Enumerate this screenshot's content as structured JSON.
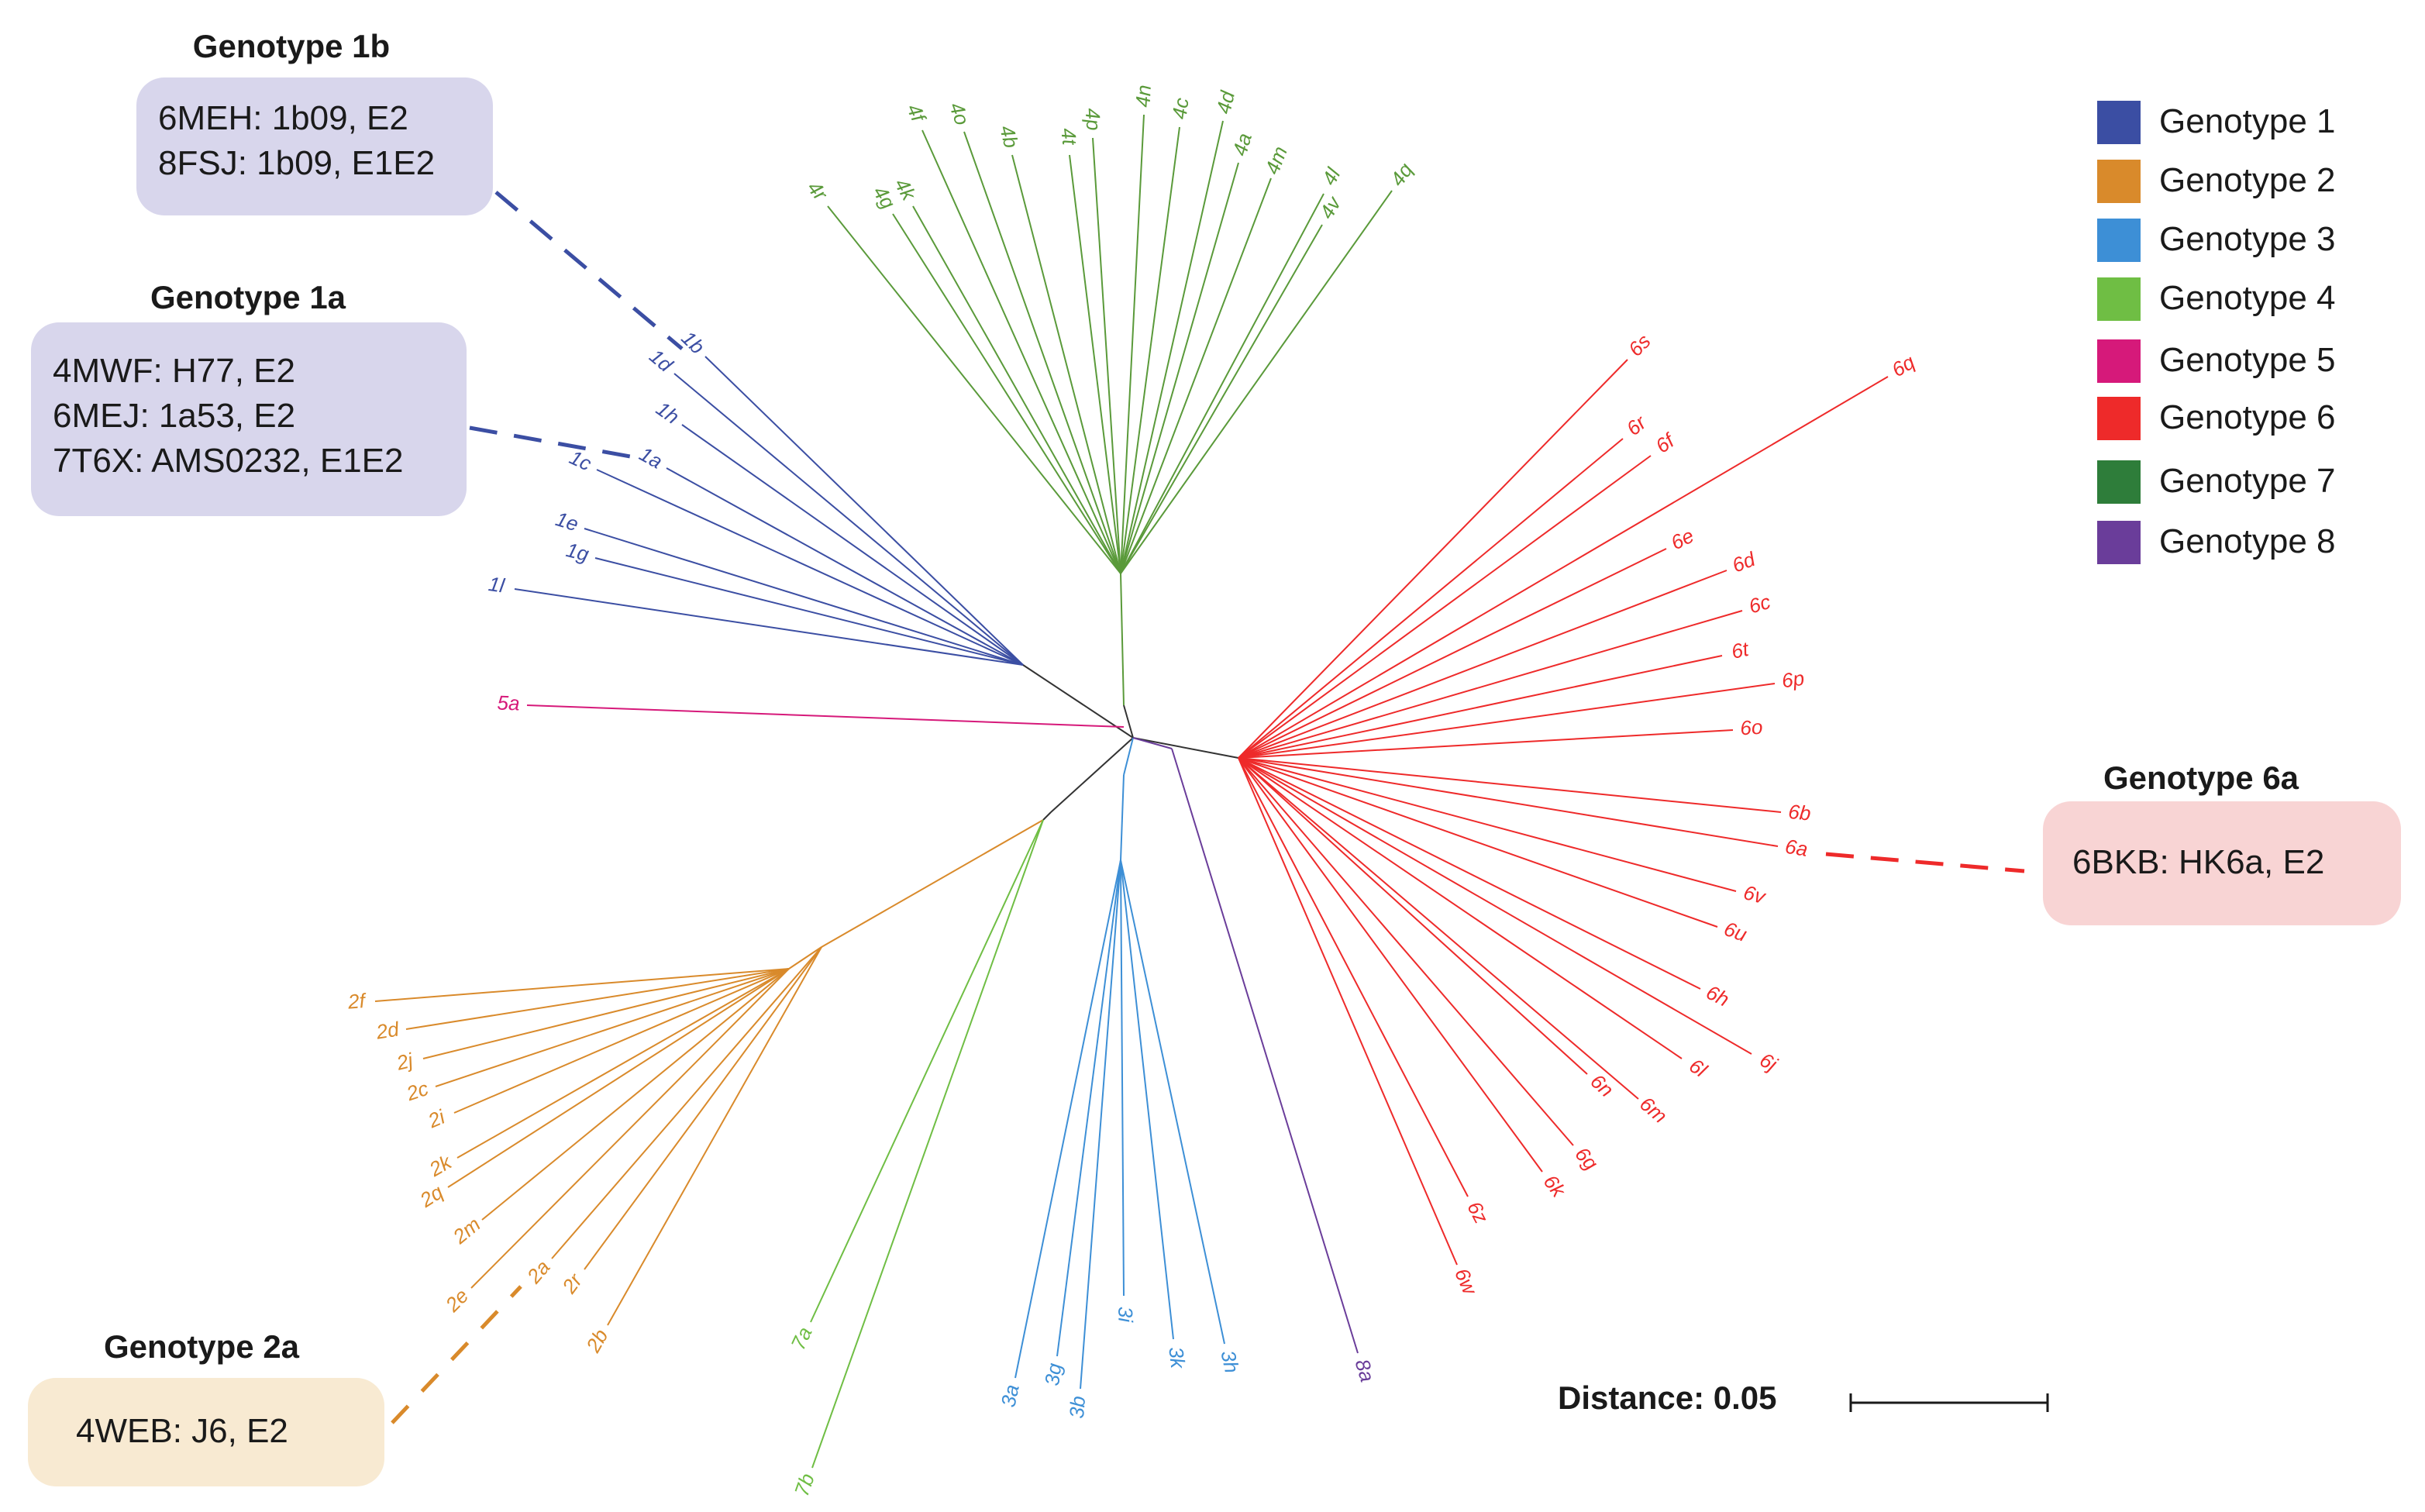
{
  "colors": {
    "genotype1": "#3b4ea3",
    "genotype2": "#d98a2b",
    "genotype3": "#3d8fd6",
    "genotype4": "#6fbe44",
    "genotype4_tree": "#5a9a3a",
    "genotype5": "#d6197a",
    "genotype6": "#ee2a2a",
    "genotype7": "#2e7d3a",
    "genotype8": "#6a3d9a",
    "backbone": "#333333",
    "box_purple": "#d8d6ec",
    "box_pink": "#f8d4d4",
    "box_beige": "#f8ead2"
  },
  "legend": [
    {
      "label": "Genotype 1",
      "color": "#3b4ea3"
    },
    {
      "label": "Genotype 2",
      "color": "#d98a2b"
    },
    {
      "label": "Genotype 3",
      "color": "#3d8fd6"
    },
    {
      "label": "Genotype 4",
      "color": "#6fbe44"
    },
    {
      "label": "Genotype 5",
      "color": "#d6197a"
    },
    {
      "label": "Genotype 6",
      "color": "#ee2a2a"
    },
    {
      "label": "Genotype 7",
      "color": "#2e7d3a"
    },
    {
      "label": "Genotype 8",
      "color": "#6a3d9a"
    }
  ],
  "callouts": {
    "g1b": {
      "title": "Genotype 1b",
      "lines": [
        "6MEH: 1b09, E2",
        "8FSJ: 1b09, E1E2"
      ]
    },
    "g1a": {
      "title": "Genotype 1a",
      "lines": [
        "4MWF: H77, E2",
        "6MEJ: 1a53, E2",
        "7T6X: AMS0232, E1E2"
      ]
    },
    "g6a": {
      "title": "Genotype 6a",
      "lines": [
        "6BKB: HK6a, E2"
      ]
    },
    "g2a": {
      "title": "Genotype 2a",
      "lines": [
        "4WEB: J6, E2"
      ]
    }
  },
  "scale": {
    "label": "Distance: 0.05"
  },
  "tips": {
    "g1": [
      "1b",
      "1d",
      "1h",
      "1a",
      "1c",
      "1e",
      "1g",
      "1l"
    ],
    "g2": [
      "2f",
      "2d",
      "2j",
      "2c",
      "2i",
      "2k",
      "2q",
      "2m",
      "2e",
      "2a",
      "2r",
      "2b"
    ],
    "g3": [
      "3a",
      "3g",
      "3b",
      "3i",
      "3k",
      "3h"
    ],
    "g4": [
      "4r",
      "4g",
      "4k",
      "4f",
      "4o",
      "4b",
      "4t",
      "4p",
      "4n",
      "4c",
      "4d",
      "4a",
      "4m",
      "4l",
      "4v",
      "4q"
    ],
    "g5": [
      "5a"
    ],
    "g6": [
      "6s",
      "6q",
      "6r",
      "6f",
      "6e",
      "6d",
      "6c",
      "6t",
      "6p",
      "6o",
      "6b",
      "6a",
      "6v",
      "6u",
      "6h",
      "6j",
      "6l",
      "6n",
      "6m",
      "6g",
      "6k",
      "6z",
      "6w"
    ],
    "g7": [
      "7a",
      "7b"
    ],
    "g8": [
      "8a"
    ]
  }
}
